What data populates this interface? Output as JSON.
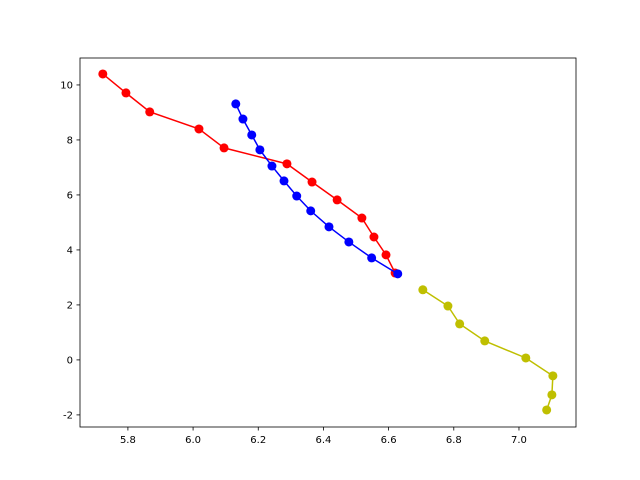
{
  "chart_data": {
    "type": "line",
    "xlim": [
      5.653,
      7.175
    ],
    "xticks": [
      5.8,
      {
        "value": 6,
        "label": "6.0"
      },
      6.2,
      6.4,
      6.6,
      6.8,
      {
        "value": 7,
        "label": "7.0"
      }
    ],
    "ylim": [
      -2.44,
      10.98
    ],
    "yticks": [
      -2,
      0,
      2,
      4,
      6,
      8,
      10
    ],
    "series": [
      {
        "color": "#ff0000",
        "x": [
          5.723,
          5.794,
          5.867,
          6.018,
          6.095,
          6.288,
          6.365,
          6.442,
          6.518,
          6.555,
          6.592,
          6.62
        ],
        "values": [
          10.4,
          9.71,
          9.02,
          8.4,
          7.71,
          7.13,
          6.47,
          5.82,
          5.16,
          4.47,
          3.82,
          3.16
        ]
      },
      {
        "color": "#0000ff",
        "x": [
          6.131,
          6.153,
          6.18,
          6.205,
          6.242,
          6.279,
          6.318,
          6.361,
          6.417,
          6.478,
          6.548,
          6.628
        ],
        "values": [
          9.31,
          8.76,
          8.18,
          7.64,
          7.05,
          6.51,
          5.96,
          5.42,
          4.84,
          4.29,
          3.71,
          3.13
        ]
      },
      {
        "color": "#bfbf00",
        "x": [
          6.705,
          6.782,
          6.818,
          6.895,
          7.021,
          7.104,
          7.101,
          7.085
        ],
        "values": [
          2.55,
          1.96,
          1.31,
          0.69,
          0.07,
          -0.58,
          -1.27,
          -1.82
        ]
      }
    ]
  }
}
